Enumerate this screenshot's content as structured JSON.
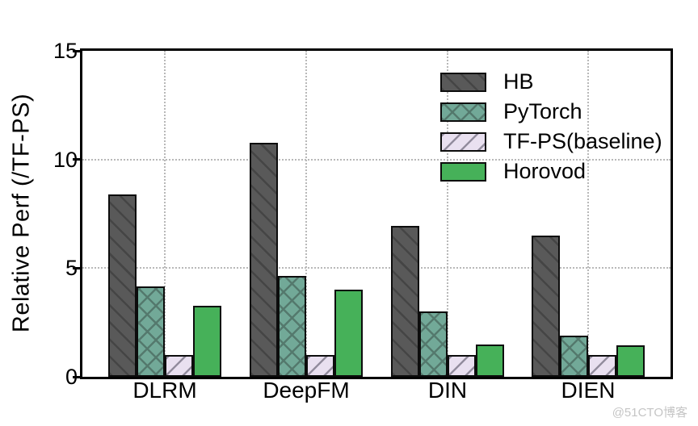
{
  "figure": {
    "watermark": "@51CTO博客"
  },
  "chart_data": {
    "type": "bar",
    "title": "",
    "xlabel": "",
    "ylabel": "Relative Perf (/TF-PS)",
    "categories": [
      "DLRM",
      "DeepFM",
      "DIN",
      "DIEN"
    ],
    "series": [
      {
        "name": "HB",
        "values": [
          8.4,
          10.75,
          6.95,
          6.5
        ],
        "fill": "#595959",
        "hatch": "/",
        "hatch_color": "#454545"
      },
      {
        "name": "PyTorch",
        "values": [
          4.15,
          4.65,
          3.0,
          1.9
        ],
        "fill": "#72a998",
        "hatch": "x",
        "hatch_color": "#54796d"
      },
      {
        "name": "TF-PS(baseline)",
        "values": [
          1.0,
          1.0,
          1.0,
          1.0
        ],
        "fill": "#e9e0f0",
        "hatch": "\\",
        "hatch_color": "#938d9e"
      },
      {
        "name": "Horovod",
        "values": [
          3.25,
          4.0,
          1.5,
          1.45
        ],
        "fill": "#46b159",
        "hatch": "",
        "hatch_color": ""
      }
    ],
    "ylim": [
      0,
      15
    ],
    "yticks": [
      "0",
      "5",
      "10",
      "15"
    ],
    "ytick_values": [
      0,
      5,
      10,
      15
    ],
    "gridlines_y": [
      5,
      10
    ],
    "grid_style": "dotted",
    "vertical_grid_at_categories": true,
    "legend_position": "upper right inside",
    "legend_order": [
      "HB",
      "PyTorch",
      "TF-PS(baseline)",
      "Horovod"
    ]
  }
}
